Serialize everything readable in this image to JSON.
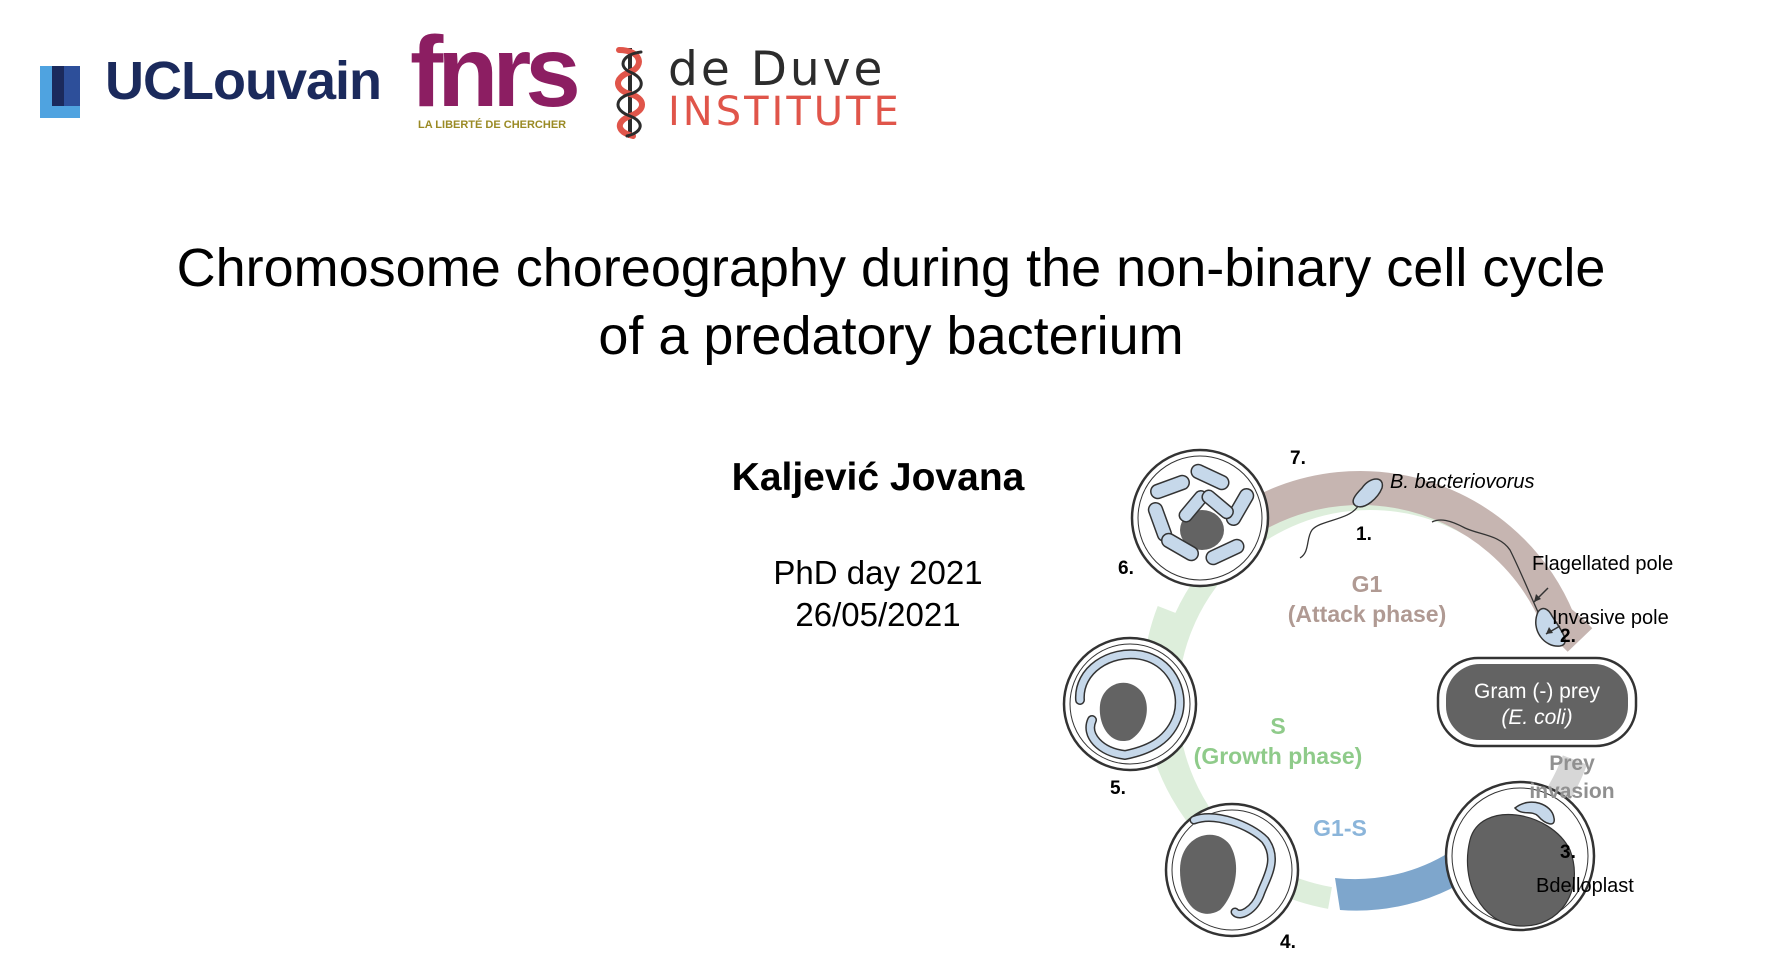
{
  "logos": {
    "uclouvain": "UCLouvain",
    "fnrs": "fnrs",
    "fnrs_tagline": "LA LIBERTÉ DE CHERCHER",
    "deduve_line1": "de Duve",
    "deduve_line2": "INSTITUTE"
  },
  "title": {
    "line1": "Chromosome choreography during the non-binary cell cycle",
    "line2": "of a predatory bacterium"
  },
  "author": "Kaljević Jovana",
  "event": {
    "name": "PhD day 2021",
    "date": "26/05/2021"
  },
  "diagram": {
    "steps": [
      "1.",
      "2.",
      "3.",
      "4.",
      "5.",
      "6.",
      "7."
    ],
    "organism": "B. bacteriovorus",
    "flagellated_pole": "Flagellated pole",
    "invasive_pole": "Invasive pole",
    "prey_line1": "Gram (-) prey",
    "prey_line2": "(E. coli)",
    "g1_line1": "G1",
    "g1_line2": "(Attack phase)",
    "s_line1": "S",
    "s_line2": "(Growth phase)",
    "g1s": "G1-S",
    "invasion_line1": "Prey",
    "invasion_line2": "invasion",
    "bdelloplast": "Bdelloplast",
    "colors": {
      "g1_arc": "#c6b5b1",
      "g1_text": "#b09a93",
      "invasion_arc": "#d7d7d7",
      "invasion_text": "#909090",
      "g1s_arc": "#7ea6cc",
      "g1s_text": "#8bb5da",
      "s_arc": "#ddeedb",
      "s_text": "#8fcb8a",
      "cell_fill": "#c6d8ea",
      "prey_fill": "#636363"
    }
  }
}
